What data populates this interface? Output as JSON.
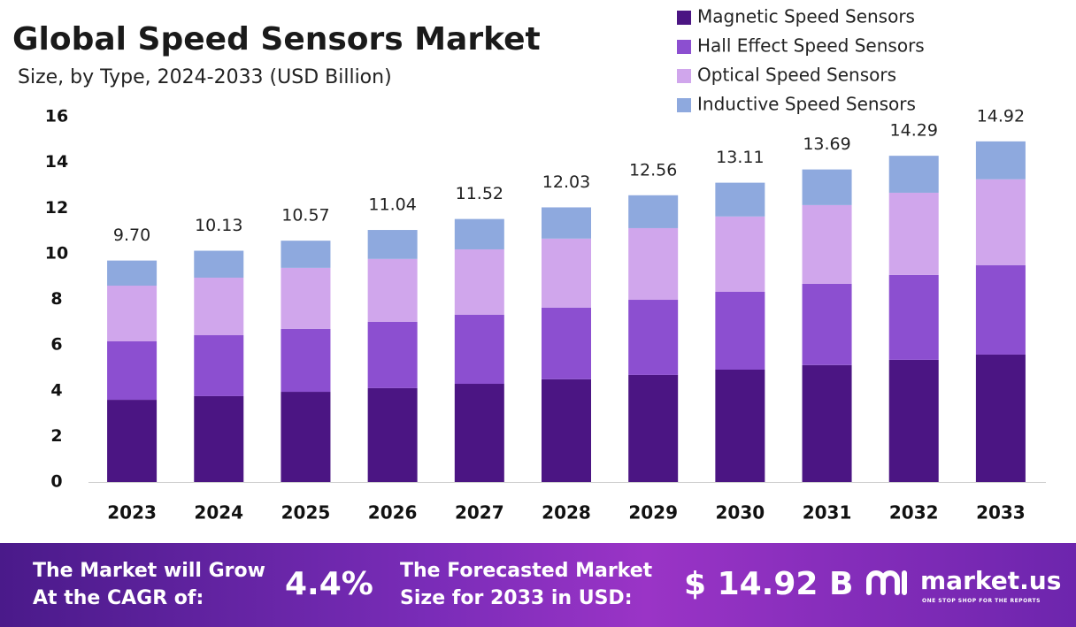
{
  "chart_data": {
    "type": "stacked_bar",
    "title": "Global Speed Sensors Market",
    "subtitle": "Size, by Type, 2024-2033 (USD Billion)",
    "categories": [
      "2023",
      "2024",
      "2025",
      "2026",
      "2027",
      "2028",
      "2029",
      "2030",
      "2031",
      "2032",
      "2033"
    ],
    "series": [
      {
        "name": "Magnetic Speed Sensors",
        "color": "#4b1583",
        "values": [
          3.6,
          3.76,
          3.95,
          4.11,
          4.3,
          4.5,
          4.69,
          4.92,
          5.12,
          5.35,
          5.58
        ]
      },
      {
        "name": "Hall Effect Speed Sensors",
        "color": "#8c4fd0",
        "values": [
          2.56,
          2.67,
          2.76,
          2.91,
          3.03,
          3.14,
          3.29,
          3.41,
          3.56,
          3.72,
          3.92
        ]
      },
      {
        "name": "Optical Speed Sensors",
        "color": "#d0a6ec",
        "values": [
          2.44,
          2.52,
          2.67,
          2.75,
          2.86,
          3.02,
          3.14,
          3.3,
          3.45,
          3.6,
          3.76
        ]
      },
      {
        "name": "Inductive Speed Sensors",
        "color": "#8ea9de",
        "values": [
          1.1,
          1.18,
          1.19,
          1.27,
          1.33,
          1.37,
          1.44,
          1.48,
          1.56,
          1.62,
          1.66
        ]
      }
    ],
    "totals": {
      "values": [
        9.7,
        10.13,
        10.57,
        11.04,
        11.52,
        12.03,
        12.56,
        13.11,
        13.69,
        14.29,
        14.92
      ],
      "value_labels": [
        "9.70",
        "10.13",
        "10.57",
        "11.04",
        "11.52",
        "12.03",
        "12.56",
        "13.11",
        "13.69",
        "14.29",
        "14.92"
      ]
    },
    "ylim": [
      0,
      16
    ],
    "yticks": [
      0,
      2,
      4,
      6,
      8,
      10,
      12,
      14,
      16
    ],
    "grid": false,
    "legend": "top-right"
  },
  "footer": {
    "cagr_text": "The Market will Grow At the CAGR of:",
    "cagr": "4.4%",
    "forecast_text": "The Forecasted Market Size for 2033 in USD:",
    "forecast": "$ 14.92 B",
    "brand": "market.us",
    "tagline": "ONE STOP SHOP FOR THE REPORTS"
  }
}
